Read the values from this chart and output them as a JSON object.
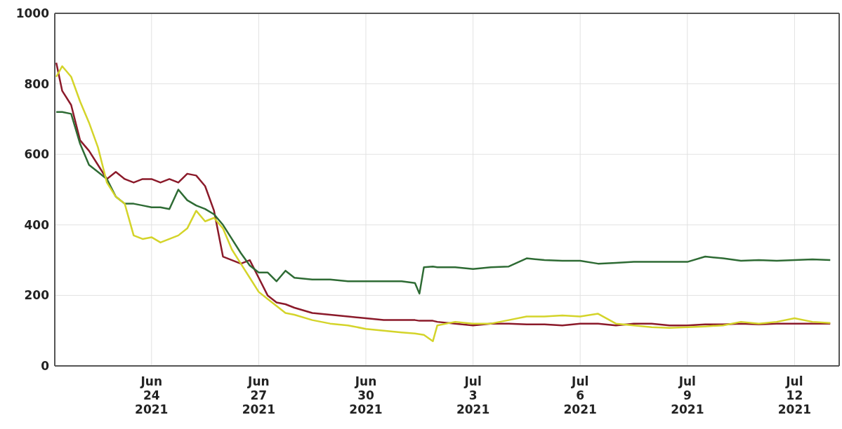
{
  "chart_data": {
    "type": "line",
    "x": [
      "2021-06-21T08:00",
      "2021-06-21T12:00",
      "2021-06-21T18:00",
      "2021-06-22T00:00",
      "2021-06-22T06:00",
      "2021-06-22T12:00",
      "2021-06-22T18:00",
      "2021-06-23T00:00",
      "2021-06-23T06:00",
      "2021-06-23T12:00",
      "2021-06-23T18:00",
      "2021-06-24T00:00",
      "2021-06-24T06:00",
      "2021-06-24T12:00",
      "2021-06-24T18:00",
      "2021-06-25T00:00",
      "2021-06-25T06:00",
      "2021-06-25T12:00",
      "2021-06-25T18:00",
      "2021-06-26T00:00",
      "2021-06-26T06:00",
      "2021-06-26T12:00",
      "2021-06-26T18:00",
      "2021-06-27T00:00",
      "2021-06-27T06:00",
      "2021-06-27T12:00",
      "2021-06-27T18:00",
      "2021-06-28T00:00",
      "2021-06-28T12:00",
      "2021-06-29T00:00",
      "2021-06-29T12:00",
      "2021-06-30T00:00",
      "2021-06-30T12:00",
      "2021-07-01T00:00",
      "2021-07-01T09:00",
      "2021-07-01T12:00",
      "2021-07-01T15:00",
      "2021-07-01T21:00",
      "2021-07-02T00:00",
      "2021-07-02T12:00",
      "2021-07-03T00:00",
      "2021-07-03T12:00",
      "2021-07-04T00:00",
      "2021-07-04T12:00",
      "2021-07-05T00:00",
      "2021-07-05T12:00",
      "2021-07-06T00:00",
      "2021-07-06T12:00",
      "2021-07-07T00:00",
      "2021-07-07T12:00",
      "2021-07-08T00:00",
      "2021-07-08T12:00",
      "2021-07-09T00:00",
      "2021-07-09T12:00",
      "2021-07-10T00:00",
      "2021-07-10T12:00",
      "2021-07-11T00:00",
      "2021-07-11T12:00",
      "2021-07-12T00:00",
      "2021-07-12T12:00",
      "2021-07-13T00:00"
    ],
    "series": [
      {
        "color": "#8b1a2a",
        "values": [
          860,
          780,
          740,
          640,
          610,
          570,
          530,
          550,
          530,
          520,
          530,
          530,
          520,
          530,
          520,
          545,
          540,
          510,
          440,
          310,
          300,
          290,
          300,
          250,
          200,
          180,
          175,
          165,
          150,
          145,
          140,
          135,
          130,
          130,
          130,
          128,
          128,
          128,
          125,
          120,
          115,
          120,
          120,
          118,
          118,
          115,
          120,
          120,
          115,
          120,
          120,
          115,
          115,
          118,
          118,
          120,
          118,
          120,
          120,
          120,
          120
        ]
      },
      {
        "color": "#2e6b34",
        "values": [
          720,
          720,
          715,
          630,
          570,
          550,
          530,
          480,
          460,
          460,
          455,
          450,
          450,
          445,
          500,
          470,
          455,
          445,
          430,
          400,
          360,
          320,
          285,
          265,
          265,
          240,
          270,
          250,
          245,
          245,
          240,
          240,
          240,
          240,
          235,
          205,
          280,
          282,
          280,
          280,
          275,
          280,
          282,
          305,
          300,
          298,
          298,
          290,
          292,
          295,
          295,
          295,
          295,
          310,
          305,
          298,
          300,
          298,
          300,
          302,
          300
        ]
      },
      {
        "color": "#d4d42a",
        "values": [
          820,
          850,
          820,
          750,
          690,
          620,
          520,
          480,
          460,
          370,
          360,
          365,
          350,
          360,
          370,
          390,
          440,
          410,
          420,
          390,
          330,
          290,
          250,
          210,
          190,
          170,
          150,
          145,
          130,
          120,
          115,
          105,
          100,
          95,
          92,
          90,
          88,
          70,
          115,
          125,
          120,
          120,
          130,
          140,
          140,
          143,
          140,
          148,
          120,
          115,
          110,
          108,
          110,
          112,
          115,
          125,
          120,
          125,
          135,
          125,
          122
        ]
      }
    ],
    "xlim": [
      "2021-06-21T07:00",
      "2021-07-13T06:00"
    ],
    "xticks": [
      {
        "value": "2021-06-24T00:00",
        "label": "Jun 24 2021"
      },
      {
        "value": "2021-06-27T00:00",
        "label": "Jun 27 2021"
      },
      {
        "value": "2021-06-30T00:00",
        "label": "Jun 30 2021"
      },
      {
        "value": "2021-07-03T00:00",
        "label": "Jul 3 2021"
      },
      {
        "value": "2021-07-06T00:00",
        "label": "Jul 6 2021"
      },
      {
        "value": "2021-07-09T00:00",
        "label": "Jul 9 2021"
      },
      {
        "value": "2021-07-12T00:00",
        "label": "Jul 12 2021"
      }
    ],
    "ylim": [
      0,
      1000
    ],
    "yticks": [
      0,
      200,
      400,
      600,
      800,
      1000
    ],
    "grid": true,
    "legend": false,
    "marker": "none",
    "line_style": "solid"
  }
}
